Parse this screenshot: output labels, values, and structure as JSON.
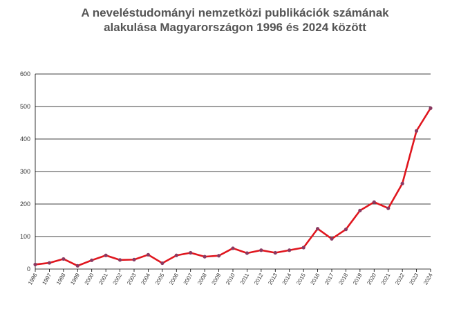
{
  "chart_data": {
    "type": "line",
    "title_line1": "A neveléstudományi nemzetközi publikációk számának",
    "title_line2": "alakulása Magyarországon 1996 és 2024 között",
    "ylim": [
      0,
      600
    ],
    "yticks": [
      "0",
      "100",
      "200",
      "300",
      "400",
      "500",
      "600"
    ],
    "grid": true,
    "categories": [
      "1996",
      "1997",
      "1998",
      "1999",
      "2000",
      "2001",
      "2002",
      "2003",
      "2004",
      "2005",
      "2006",
      "2007",
      "2008",
      "2009",
      "2010",
      "2011",
      "2012",
      "2013",
      "2014",
      "2015",
      "2016",
      "2017",
      "2018",
      "2019",
      "2020",
      "2021",
      "2022",
      "2023",
      "2024"
    ],
    "values": [
      14,
      19,
      31,
      10,
      27,
      42,
      28,
      29,
      44,
      18,
      42,
      50,
      38,
      41,
      64,
      49,
      58,
      50,
      58,
      66,
      124,
      93,
      122,
      180,
      206,
      187,
      263,
      425,
      495
    ],
    "line_color": "#e0161e",
    "marker_color": "#8b3a62"
  }
}
